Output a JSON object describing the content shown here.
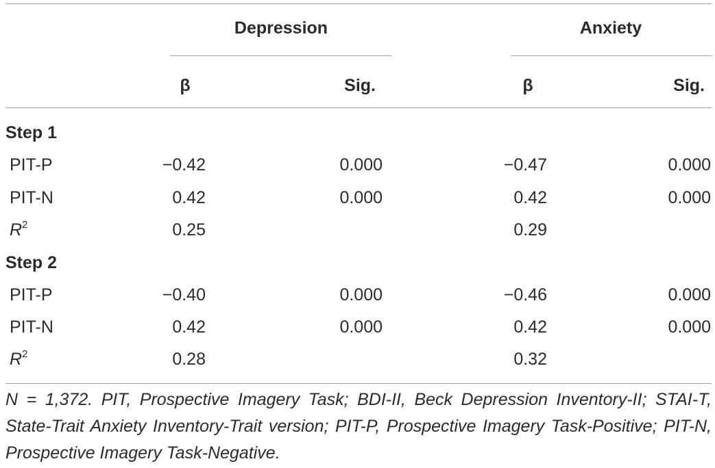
{
  "header": {
    "groups": [
      "Depression",
      "Anxiety"
    ],
    "subheaders": [
      "β",
      "Sig.",
      "β",
      "Sig."
    ]
  },
  "steps": [
    {
      "label": "Step 1",
      "rows": [
        {
          "label": "PIT-P",
          "dep_beta": "−0.42",
          "dep_sig": "0.000",
          "anx_beta": "−0.47",
          "anx_sig": "0.000"
        },
        {
          "label": "PIT-N",
          "dep_beta": "0.42",
          "dep_sig": "0.000",
          "anx_beta": "0.42",
          "anx_sig": "0.000"
        },
        {
          "label": "R",
          "sup": "2",
          "dep_beta": "0.25",
          "dep_sig": "",
          "anx_beta": "0.29",
          "anx_sig": ""
        }
      ]
    },
    {
      "label": "Step 2",
      "rows": [
        {
          "label": "PIT-P",
          "dep_beta": "−0.40",
          "dep_sig": "0.000",
          "anx_beta": "−0.46",
          "anx_sig": "0.000"
        },
        {
          "label": "PIT-N",
          "dep_beta": "0.42",
          "dep_sig": "0.000",
          "anx_beta": "0.42",
          "anx_sig": "0.000"
        },
        {
          "label": "R",
          "sup": "2",
          "dep_beta": "0.28",
          "dep_sig": "",
          "anx_beta": "0.32",
          "anx_sig": ""
        }
      ]
    }
  ],
  "footnote": "N = 1,372. PIT, Prospective Imagery Task; BDI-II, Beck Depression Inventory-II; STAI-T, State-Trait Anxiety Inventory-Trait version; PIT-P, Prospective Imagery Task-Positive; PIT-N, Prospective Imagery Task-Negative."
}
